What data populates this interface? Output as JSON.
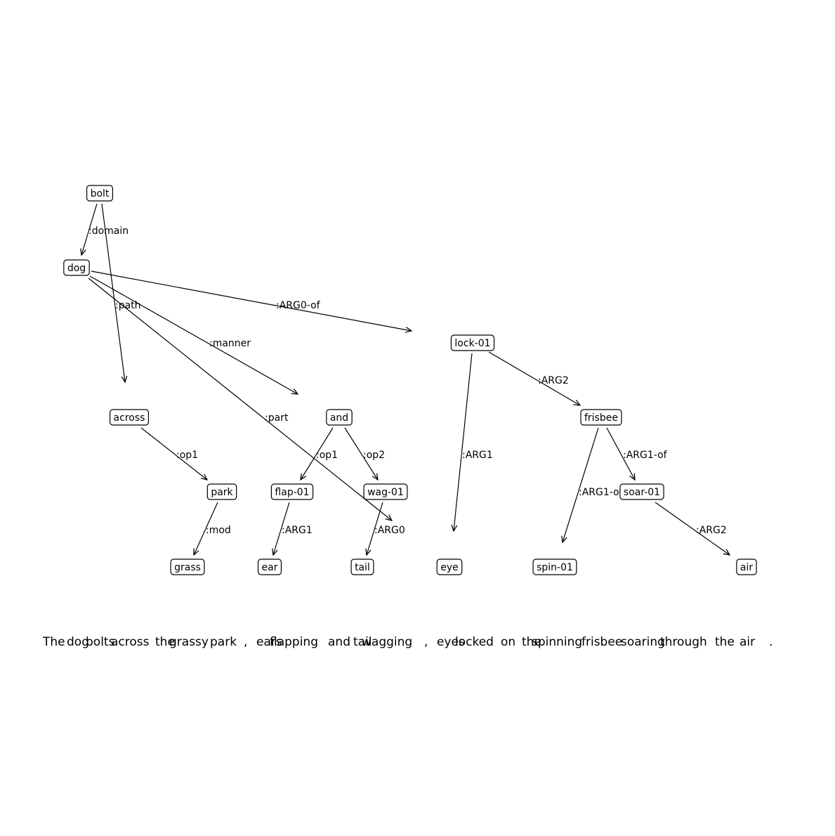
{
  "nodes": [
    {
      "id": "bolt",
      "label": "bolt"
    },
    {
      "id": "dog",
      "label": "dog"
    },
    {
      "id": "lock",
      "label": "lock-01"
    },
    {
      "id": "across",
      "label": "across"
    },
    {
      "id": "and",
      "label": "and"
    },
    {
      "id": "frisbee",
      "label": "frisbee"
    },
    {
      "id": "park",
      "label": "park"
    },
    {
      "id": "flap",
      "label": "flap-01"
    },
    {
      "id": "wag",
      "label": "wag-01"
    },
    {
      "id": "soar",
      "label": "soar-01"
    },
    {
      "id": "grass",
      "label": "grass"
    },
    {
      "id": "ear",
      "label": "ear"
    },
    {
      "id": "tail",
      "label": "tail"
    },
    {
      "id": "eye",
      "label": "eye"
    },
    {
      "id": "spin",
      "label": "spin-01"
    },
    {
      "id": "air",
      "label": "air"
    }
  ],
  "edges": [
    {
      "from": "bolt",
      "to": "dog",
      "label": ":domain"
    },
    {
      "from": "bolt",
      "to": "across",
      "label": ":path"
    },
    {
      "from": "dog",
      "to": "lock",
      "label": ":ARG0-of"
    },
    {
      "from": "dog",
      "to": "and",
      "label": ":manner"
    },
    {
      "from": "dog",
      "to": "wag",
      "label": ":part"
    },
    {
      "from": "lock",
      "to": "frisbee",
      "label": ":ARG2"
    },
    {
      "from": "lock",
      "to": "eye",
      "label": ":ARG1"
    },
    {
      "from": "across",
      "to": "park",
      "label": ":op1"
    },
    {
      "from": "and",
      "to": "flap",
      "label": ":op1"
    },
    {
      "from": "and",
      "to": "wag",
      "label": ":op2"
    },
    {
      "from": "frisbee",
      "to": "soar",
      "label": ":ARG1-of"
    },
    {
      "from": "frisbee",
      "to": "spin",
      "label": ":ARG1-of"
    },
    {
      "from": "park",
      "to": "grass",
      "label": ":mod"
    },
    {
      "from": "flap",
      "to": "ear",
      "label": ":ARG1"
    },
    {
      "from": "wag",
      "to": "tail",
      "label": ":ARG0"
    },
    {
      "from": "soar",
      "to": "air",
      "label": ":ARG2"
    }
  ],
  "tokens": [
    "The",
    "dog",
    "bolts",
    "across",
    "the",
    "grassy",
    "park",
    ",",
    "ears",
    "flapping",
    "and",
    "tail",
    "wagging",
    ",",
    "eyes",
    "locked",
    "on",
    "the",
    "spinning",
    "frisbee",
    "soaring",
    "through",
    "the",
    "air",
    "."
  ]
}
